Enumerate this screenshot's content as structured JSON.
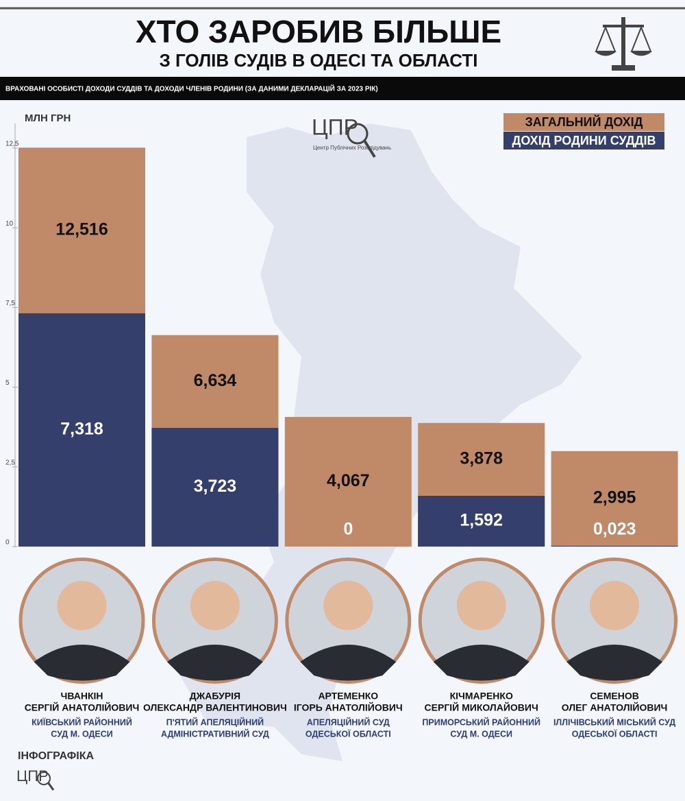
{
  "chart_data": {
    "type": "bar",
    "title": "ХТО ЗАРОБИВ БІЛЬШЕ",
    "subtitle": "З ГОЛІВ СУДІВ В ОДЕСІ ТА ОБЛАСТІ",
    "note": "ВРАХОВАНІ ОСОБИСТІ ДОХОДИ СУДДІВ ТА ДОХОДИ ЧЛЕНІВ РОДИНИ (ЗА ДАНИМИ ДЕКЛАРАЦІЙ ЗА 2023 РІК)",
    "y_label": "МЛН ГРН",
    "categories": [
      "ЧВАНКІН",
      "ДЖАБУРІЯ",
      "АРТЕМЕНКО",
      "КІЧМАРЕНКО",
      "СЕМЕНОВ"
    ],
    "series": [
      {
        "name": "ЗАГАЛЬНИЙ ДОХІД",
        "color": "#c08a68",
        "values": [
          12.516,
          6.634,
          4.067,
          3.878,
          2.995
        ],
        "value_labels": [
          "12,516",
          "6,634",
          "4,067",
          "3,878",
          "2,995"
        ]
      },
      {
        "name": "ДОХІД РОДИНИ СУДДІВ",
        "color": "#34406b",
        "values": [
          7.318,
          3.723,
          0,
          1.592,
          0.023
        ],
        "value_labels": [
          "7,318",
          "3,723",
          "0",
          "1,592",
          "0,023"
        ]
      }
    ],
    "ylim": [
      0,
      12.5
    ],
    "yticks": [
      0,
      {
        "value": 2.5,
        "label": "2,5"
      },
      5,
      {
        "value": 7.5,
        "label": "7,5"
      },
      10,
      {
        "value": 12.5,
        "label": "12,5"
      }
    ],
    "overlap": true
  },
  "judges": [
    {
      "name": "СЕРГІЙ АНАТОЛІЙОВИЧ",
      "court": [
        "КИЇВСЬКИЙ РАЙОННИЙ",
        "СУД М. ОДЕСИ"
      ]
    },
    {
      "name": "ОЛЕКСАНДР ВАЛЕНТИНОВИЧ",
      "court": [
        "П'ЯТИЙ АПЕЛЯЦІЙНИЙ",
        "АДМІНІСТРАТИВНИЙ СУД"
      ]
    },
    {
      "name": "ІГОРЬ АНАТОЛІЙОВИЧ",
      "court": [
        "АПЕЛЯЦІЙНИЙ СУД",
        "ОДЕСЬКОЇ ОБЛАСТІ"
      ]
    },
    {
      "name": "СЕРГІЙ МИКОЛАЙОВИЧ",
      "court": [
        "ПРИМОРСЬКИЙ РАЙОННИЙ",
        "СУД М. ОДЕСИ"
      ]
    },
    {
      "name": "ОЛЕГ АНАТОЛІЙОВИЧ",
      "court": [
        "ІЛЛІЧІВСЬКИЙ МІСЬКИЙ СУД",
        "ОДЕСЬКОЇ ОБЛАСТІ"
      ]
    }
  ],
  "footer": "ІНФОГРАФІКА",
  "logo": {
    "letters": "ЦПР",
    "caption": "Центр Публічних Розслідувань"
  }
}
